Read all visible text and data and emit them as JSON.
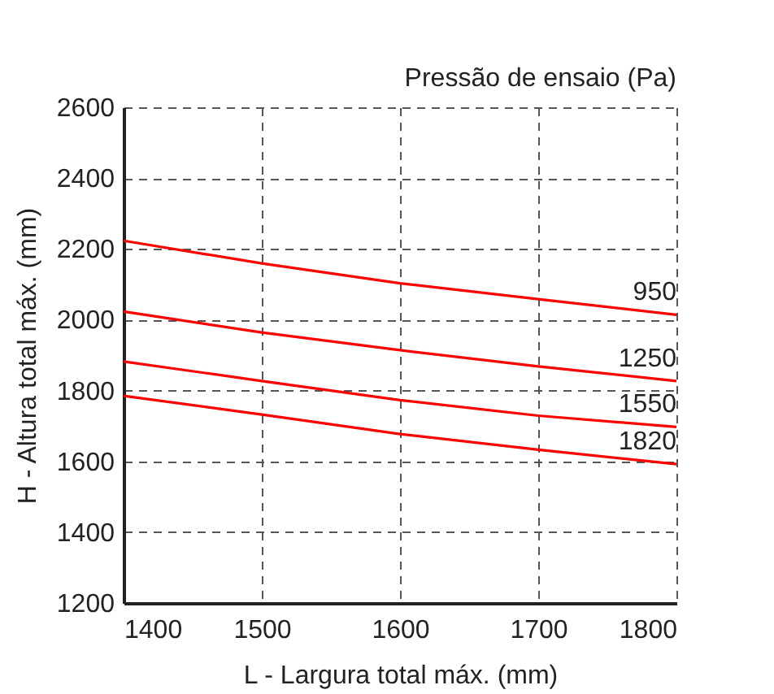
{
  "chart_data": {
    "type": "line",
    "xlabel": "L - Largura total máx. (mm)",
    "ylabel": "H - Altura total máx. (mm)",
    "legend_title": "Pressão de ensaio (Pa)",
    "x": [
      1400,
      1500,
      1600,
      1700,
      1800
    ],
    "series": [
      {
        "name": "950",
        "color": "#ff0000",
        "values": [
          2223,
          2159,
          2103,
          2058,
          2014
        ]
      },
      {
        "name": "1250",
        "color": "#ff0000",
        "values": [
          2023,
          1964,
          1914,
          1868,
          1827
        ]
      },
      {
        "name": "1550",
        "color": "#ff0000",
        "values": [
          1882,
          1827,
          1773,
          1729,
          1697
        ]
      },
      {
        "name": "1820",
        "color": "#ff0000",
        "values": [
          1785,
          1732,
          1677,
          1633,
          1592
        ]
      }
    ],
    "xlim": [
      1400,
      1800
    ],
    "xticks": [
      1400,
      1500,
      1600,
      1700,
      1800
    ],
    "ylim": [
      1200,
      2600
    ],
    "yticks": [
      1200,
      1400,
      1600,
      1800,
      2000,
      2200,
      2400,
      2600
    ],
    "grid": true,
    "legend": false,
    "marker": "none",
    "line_style": "solid"
  }
}
